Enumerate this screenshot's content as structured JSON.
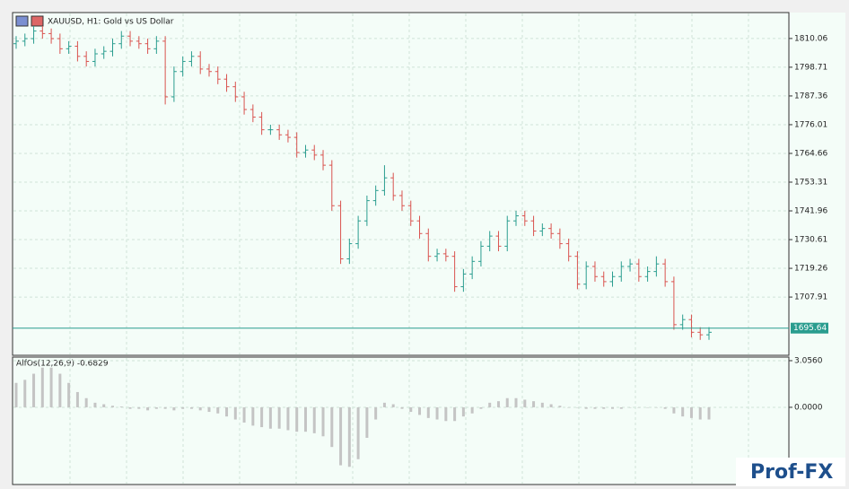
{
  "chart_data": [
    {
      "type": "ohlc",
      "title": "XAUUSD, H1:  Gold vs US Dollar",
      "up_color": "#2a9d8f",
      "down_color": "#d9534f",
      "grid": true,
      "ylim": [
        1684.9,
        1820.3
      ],
      "yticks": [
        1810.06,
        1798.71,
        1787.36,
        1776.01,
        1764.66,
        1753.31,
        1741.96,
        1730.61,
        1719.26,
        1707.91
      ],
      "last_price": 1695.64,
      "open": [
        1808,
        1809,
        1810,
        1813,
        1812,
        1810,
        1806,
        1807,
        1803,
        1801,
        1804,
        1805,
        1808,
        1811,
        1809,
        1808,
        1806,
        1809,
        1787,
        1797,
        1801,
        1803,
        1798,
        1797,
        1794,
        1791,
        1787,
        1782,
        1779,
        1774,
        1774,
        1772,
        1771,
        1765,
        1766,
        1764,
        1760,
        1744,
        1723,
        1729,
        1738,
        1746,
        1750,
        1755,
        1748,
        1744,
        1738,
        1733,
        1724,
        1725,
        1724,
        1712,
        1717,
        1722,
        1728,
        1732,
        1728,
        1738,
        1740,
        1738,
        1734,
        1735,
        1733,
        1729,
        1724,
        1713,
        1720,
        1716,
        1714,
        1716,
        1720,
        1721,
        1716,
        1718,
        1721,
        1714,
        1697,
        1699,
        1694,
        1693
      ],
      "high": [
        1811,
        1812,
        1815,
        1815,
        1814,
        1812,
        1809,
        1809,
        1805,
        1806,
        1807,
        1810,
        1813,
        1813,
        1811,
        1810,
        1811,
        1811,
        1799,
        1803,
        1805,
        1805,
        1800,
        1799,
        1796,
        1793,
        1789,
        1784,
        1781,
        1776,
        1776,
        1774,
        1773,
        1768,
        1768,
        1766,
        1762,
        1746,
        1731,
        1740,
        1748,
        1752,
        1760,
        1757,
        1750,
        1746,
        1740,
        1735,
        1727,
        1727,
        1726,
        1719,
        1724,
        1730,
        1734,
        1734,
        1740,
        1742,
        1742,
        1740,
        1737,
        1737,
        1735,
        1731,
        1726,
        1722,
        1722,
        1718,
        1718,
        1722,
        1723,
        1723,
        1720,
        1724,
        1723,
        1716,
        1701,
        1701,
        1696,
        1696
      ],
      "low": [
        1806,
        1807,
        1808,
        1810,
        1808,
        1804,
        1804,
        1801,
        1799,
        1799,
        1802,
        1803,
        1806,
        1807,
        1806,
        1804,
        1804,
        1784,
        1785,
        1795,
        1799,
        1796,
        1795,
        1792,
        1789,
        1785,
        1780,
        1777,
        1772,
        1772,
        1770,
        1769,
        1763,
        1763,
        1762,
        1758,
        1742,
        1721,
        1721,
        1727,
        1736,
        1744,
        1748,
        1746,
        1742,
        1736,
        1731,
        1722,
        1722,
        1722,
        1710,
        1710,
        1715,
        1720,
        1726,
        1726,
        1726,
        1736,
        1736,
        1732,
        1732,
        1731,
        1727,
        1722,
        1711,
        1711,
        1714,
        1712,
        1712,
        1714,
        1718,
        1714,
        1714,
        1716,
        1712,
        1695,
        1695,
        1692,
        1691,
        1691
      ],
      "close": [
        1809,
        1810,
        1813,
        1812,
        1810,
        1806,
        1807,
        1803,
        1801,
        1804,
        1805,
        1808,
        1811,
        1809,
        1808,
        1806,
        1809,
        1787,
        1797,
        1801,
        1803,
        1798,
        1797,
        1794,
        1791,
        1787,
        1782,
        1779,
        1774,
        1774,
        1772,
        1771,
        1765,
        1766,
        1764,
        1760,
        1744,
        1723,
        1729,
        1738,
        1746,
        1750,
        1755,
        1748,
        1744,
        1738,
        1733,
        1724,
        1725,
        1724,
        1712,
        1717,
        1722,
        1728,
        1732,
        1728,
        1738,
        1740,
        1738,
        1734,
        1735,
        1733,
        1729,
        1724,
        1713,
        1720,
        1716,
        1714,
        1716,
        1720,
        1721,
        1716,
        1718,
        1721,
        1714,
        1697,
        1699,
        1694,
        1693,
        1694
      ]
    },
    {
      "type": "bar",
      "title": "AlfOs(12,26,9) -0.6829",
      "color": "#c4c4c4",
      "ylim": [
        -5.06,
        3.29
      ],
      "yticks": [
        {
          "value": 3.056,
          "label": "3.0560"
        },
        {
          "value": 0,
          "label": "0.0000"
        }
      ],
      "values": [
        1.6,
        1.8,
        2.2,
        2.6,
        2.6,
        2.2,
        1.6,
        1.0,
        0.6,
        0.3,
        0.2,
        0.1,
        0.05,
        -0.1,
        -0.1,
        -0.2,
        -0.1,
        -0.1,
        -0.2,
        -0.1,
        -0.1,
        -0.2,
        -0.3,
        -0.4,
        -0.6,
        -0.8,
        -1.0,
        -1.2,
        -1.3,
        -1.4,
        -1.4,
        -1.5,
        -1.6,
        -1.6,
        -1.7,
        -1.9,
        -2.6,
        -3.8,
        -3.9,
        -3.4,
        -2.0,
        -0.8,
        0.3,
        0.2,
        -0.1,
        -0.3,
        -0.5,
        -0.7,
        -0.8,
        -0.9,
        -0.9,
        -0.6,
        -0.4,
        -0.1,
        0.3,
        0.4,
        0.6,
        0.6,
        0.5,
        0.4,
        0.3,
        0.2,
        0.1,
        0.0,
        0.0,
        -0.1,
        -0.1,
        -0.1,
        -0.1,
        -0.1,
        0.0,
        0.0,
        0.0,
        0.0,
        -0.1,
        -0.4,
        -0.6,
        -0.7,
        -0.8,
        -0.8
      ]
    }
  ],
  "watermark": "Prof-FX"
}
